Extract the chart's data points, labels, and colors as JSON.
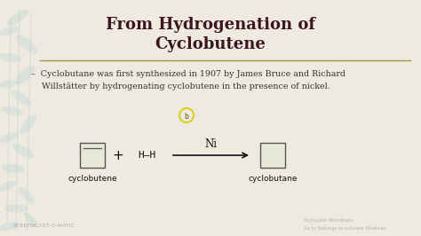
{
  "bg_color": "#eeeae0",
  "title_line1": "From Hydrogenation of",
  "title_line2": "Cyclobutene",
  "title_color": "#3b1520",
  "title_fontsize": 13,
  "divider_color": "#9a9a40",
  "body_text_line1": "–  Cyclobutane was first synthesized in 1907 by James Bruce and Richard",
  "body_text_line2": "    Willstätter by hydrogenating cyclobutene in the presence of nickel.",
  "body_color": "#333333",
  "body_fontsize": 6.8,
  "reaction_label_ni": "Ni",
  "reaction_label_hh": "H—H",
  "reaction_label_plus": "+",
  "label_cyclobutene": "cyclobutene",
  "label_cyclobutane": "cyclobutane",
  "reaction_label_color": "#111111",
  "box_facecolor": "#e8e8d8",
  "box_edge_color": "#555555",
  "arrow_color": "#111111",
  "watermark_color": "#888888",
  "watermark_fontsize": 4.5,
  "screenshot_text": "SCREENCAST-O-MATIC",
  "activate_windows_line1": "Activate Windows",
  "activate_windows_line2": "Go to Settings to activate Windows.",
  "leaf_color": "#c0d4d4",
  "leaf_alpha": 0.4,
  "cursor_circle_color": "#d8cc10",
  "cursor_text": "b"
}
